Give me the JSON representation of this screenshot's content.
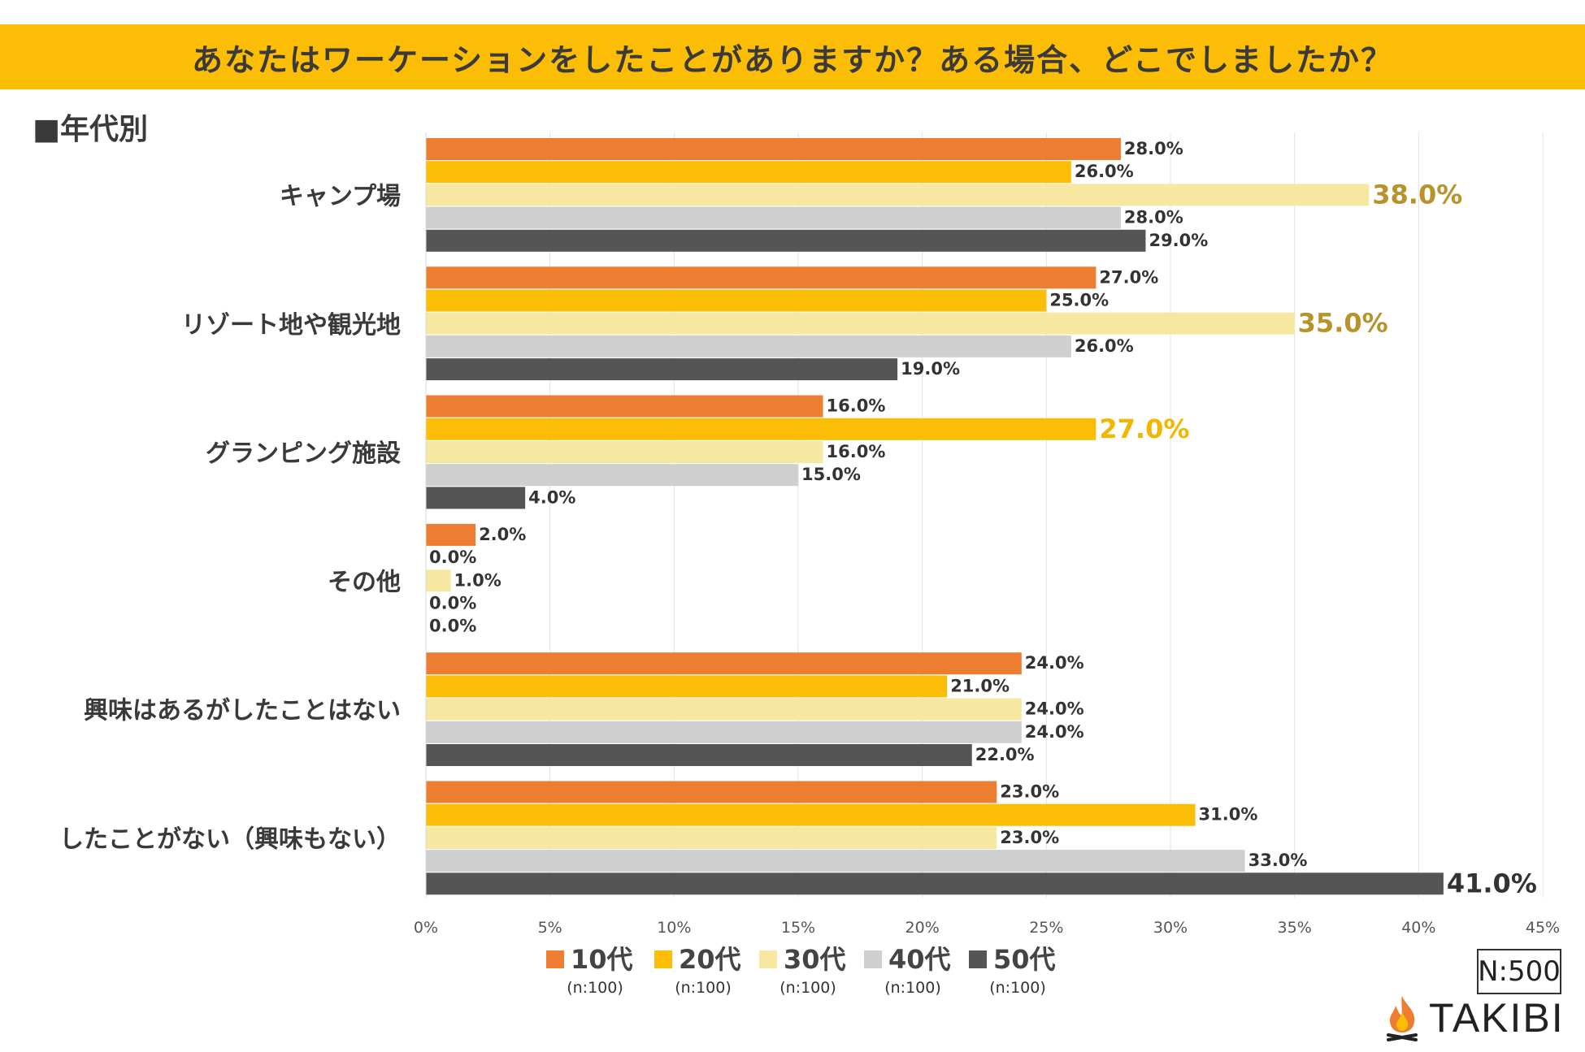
{
  "title": "あなたはワーケーションをしたことがありますか？ある場合、どこでしましたか？",
  "subtitle": "■年代別",
  "sample_size": "N:500",
  "brand": "TAKIBI",
  "colors": {
    "title_bg": "#fbbd06",
    "s10": "#ed7d31",
    "s20": "#fbbd06",
    "s30": "#f6e8a0",
    "s40": "#d0cfcf",
    "s50": "#555555",
    "highlight_gold": "#b8922a",
    "highlight_yellow": "#f2b600",
    "label_text": "#333333"
  },
  "chart_data": {
    "type": "bar",
    "orientation": "horizontal",
    "title": "あなたはワーケーションをしたことがありますか？ある場合、どこでしましたか？",
    "xlabel": "",
    "ylabel": "",
    "xlim": [
      0,
      45
    ],
    "xticks": [
      0,
      5,
      10,
      15,
      20,
      25,
      30,
      35,
      40,
      45
    ],
    "xtick_labels": [
      "0%",
      "5%",
      "10%",
      "15%",
      "20%",
      "25%",
      "30%",
      "35%",
      "40%",
      "45%"
    ],
    "categories": [
      "キャンプ場",
      "リゾート地や観光地",
      "グランピング施設",
      "その他",
      "興味はあるがしたことはない",
      "したことがない（興味もない）"
    ],
    "series": [
      {
        "name": "10代",
        "n": "(n:100)",
        "color": "#ed7d31",
        "values": [
          28.0,
          27.0,
          16.0,
          2.0,
          24.0,
          23.0
        ],
        "labels": [
          "28.0%",
          "27.0%",
          "16.0%",
          "2.0%",
          "24.0%",
          "23.0%"
        ]
      },
      {
        "name": "20代",
        "n": "(n:100)",
        "color": "#fbbd06",
        "values": [
          26.0,
          25.0,
          27.0,
          0.0,
          21.0,
          31.0
        ],
        "labels": [
          "26.0%",
          "25.0%",
          "27.0%",
          "0.0%",
          "21.0%",
          "31.0%"
        ]
      },
      {
        "name": "30代",
        "n": "(n:100)",
        "color": "#f6e8a0",
        "values": [
          38.0,
          35.0,
          16.0,
          1.0,
          24.0,
          23.0
        ],
        "labels": [
          "38.0%",
          "35.0%",
          "16.0%",
          "1.0%",
          "24.0%",
          "23.0%"
        ]
      },
      {
        "name": "40代",
        "n": "(n:100)",
        "color": "#d0cfcf",
        "values": [
          28.0,
          26.0,
          15.0,
          0.0,
          24.0,
          33.0
        ],
        "labels": [
          "28.0%",
          "26.0%",
          "15.0%",
          "0.0%",
          "24.0%",
          "33.0%"
        ]
      },
      {
        "name": "50代",
        "n": "(n:100)",
        "color": "#555555",
        "values": [
          29.0,
          19.0,
          4.0,
          0.0,
          22.0,
          41.0
        ],
        "labels": [
          "29.0%",
          "19.0%",
          "4.0%",
          "0.0%",
          "22.0%",
          "41.0%"
        ]
      }
    ],
    "highlights": [
      {
        "category": 0,
        "series": 2,
        "color": "#b8922a"
      },
      {
        "category": 1,
        "series": 2,
        "color": "#b8922a"
      },
      {
        "category": 2,
        "series": 1,
        "color": "#f2b600"
      },
      {
        "category": 5,
        "series": 4,
        "color": "#333333"
      }
    ],
    "legend_position": "bottom",
    "grid": true
  }
}
